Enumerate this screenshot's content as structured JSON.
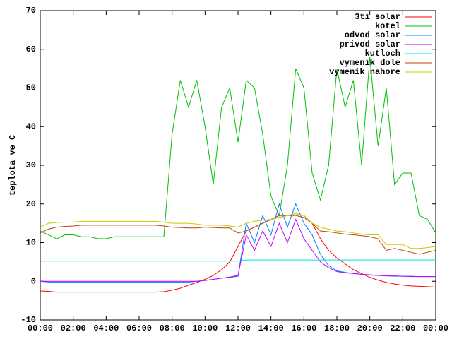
{
  "chart_data": {
    "type": "line",
    "ylabel": "teplota ve C",
    "x": [
      0,
      0.5,
      1,
      1.5,
      2,
      2.5,
      3,
      3.5,
      4,
      4.5,
      5,
      5.5,
      6,
      6.5,
      7,
      7.5,
      8,
      8.5,
      9,
      9.5,
      10,
      10.5,
      11,
      11.5,
      12,
      12.5,
      13,
      13.5,
      14,
      14.5,
      15,
      15.5,
      16,
      16.5,
      17,
      17.5,
      18,
      18.5,
      19,
      19.5,
      20,
      20.5,
      21,
      21.5,
      22,
      22.5,
      23,
      23.5,
      24
    ],
    "xlim": [
      0,
      24
    ],
    "xticks": [
      {
        "value": 0,
        "label": "00:00"
      },
      {
        "value": 2,
        "label": "02:00"
      },
      {
        "value": 4,
        "label": "04:00"
      },
      {
        "value": 6,
        "label": "06:00"
      },
      {
        "value": 8,
        "label": "08:00"
      },
      {
        "value": 10,
        "label": "10:00"
      },
      {
        "value": 12,
        "label": "12:00"
      },
      {
        "value": 14,
        "label": "14:00"
      },
      {
        "value": 16,
        "label": "16:00"
      },
      {
        "value": 18,
        "label": "18:00"
      },
      {
        "value": 20,
        "label": "20:00"
      },
      {
        "value": 22,
        "label": "22:00"
      },
      {
        "value": 24,
        "label": "00:00"
      }
    ],
    "ylim": [
      -10,
      70
    ],
    "yticks": [
      -10,
      0,
      10,
      20,
      30,
      40,
      50,
      60,
      70
    ],
    "legend": "top right",
    "series": [
      {
        "name": "3ti solar",
        "color": "#ff0000",
        "values": [
          -2.5,
          -2.6,
          -2.8,
          -2.8,
          -2.8,
          -2.8,
          -2.8,
          -2.8,
          -2.8,
          -2.8,
          -2.8,
          -2.8,
          -2.8,
          -2.8,
          -2.8,
          -2.7,
          -2.3,
          -1.8,
          -1,
          -0.3,
          0.5,
          1.5,
          3,
          5,
          9,
          13,
          14,
          15,
          16,
          17,
          17,
          17.5,
          17,
          15,
          11,
          8,
          6,
          4.5,
          3,
          2,
          1,
          0.3,
          -0.3,
          -0.7,
          -1,
          -1.2,
          -1.3,
          -1.4,
          -1.5
        ]
      },
      {
        "name": "kotel",
        "color": "#00c000",
        "values": [
          13,
          12,
          11,
          12,
          12,
          11.5,
          11.5,
          11,
          11,
          11.5,
          11.5,
          11.5,
          11.5,
          11.5,
          11.5,
          11.5,
          38,
          52,
          45,
          52,
          40,
          25,
          45,
          50,
          36,
          52,
          50,
          38,
          22,
          17,
          30,
          55,
          50,
          28,
          21,
          30,
          55,
          45,
          52,
          30,
          58,
          35,
          50,
          25,
          28,
          28,
          17,
          16,
          12.5
        ]
      },
      {
        "name": "odvod solar",
        "color": "#0080ff",
        "values": [
          0,
          -0.2,
          -0.2,
          -0.2,
          -0.2,
          -0.2,
          -0.2,
          -0.2,
          -0.2,
          -0.2,
          -0.2,
          -0.2,
          -0.2,
          -0.2,
          -0.2,
          -0.2,
          -0.2,
          -0.2,
          -0.2,
          0,
          0.2,
          0.5,
          0.8,
          1,
          1.3,
          15,
          10,
          17,
          12,
          20,
          14,
          20,
          15,
          12,
          7,
          4,
          2.7,
          2.3,
          2,
          1.8,
          1.6,
          1.5,
          1.4,
          1.3,
          1.3,
          1.2,
          1.2,
          1.2,
          1.2
        ]
      },
      {
        "name": "privod solar",
        "color": "#c000ff",
        "values": [
          0,
          0,
          0,
          0,
          0,
          0,
          0,
          0,
          0,
          0,
          0,
          0,
          0,
          0,
          0,
          0,
          0,
          0,
          0,
          0,
          0.2,
          0.5,
          0.8,
          1.1,
          1.5,
          12,
          8,
          13,
          9,
          15,
          10,
          16,
          11,
          8,
          5,
          3.5,
          2.5,
          2.2,
          2,
          1.8,
          1.7,
          1.5,
          1.4,
          1.4,
          1.3,
          1.3,
          1.2,
          1.2,
          1.2
        ]
      },
      {
        "name": "kutloch",
        "color": "#00e0e0",
        "values": [
          5.2,
          5.2,
          5.2,
          5.2,
          5.2,
          5.2,
          5.2,
          5.2,
          5.2,
          5.2,
          5.2,
          5.2,
          5.2,
          5.2,
          5.2,
          5.2,
          5.2,
          5.2,
          5.2,
          5.2,
          5.2,
          5.2,
          5.2,
          5.2,
          5.2,
          5.5,
          5.5,
          5.5,
          5.5,
          5.5,
          5.5,
          5.5,
          5.5,
          5.5,
          5.5,
          5.5,
          5.5,
          5.5,
          5.5,
          5.5,
          5.5,
          5.5,
          5.5,
          5.5,
          5.5,
          5.5,
          5.5,
          5.5,
          5.5
        ]
      },
      {
        "name": "vymenik dole",
        "color": "#c04000",
        "values": [
          12.5,
          13.5,
          14,
          14.2,
          14.3,
          14.5,
          14.5,
          14.5,
          14.5,
          14.5,
          14.5,
          14.5,
          14.5,
          14.5,
          14.5,
          14.3,
          14,
          13.9,
          13.8,
          13.8,
          14,
          13.9,
          13.8,
          13.8,
          12.5,
          13,
          14,
          15,
          16,
          16.5,
          17,
          17,
          16.5,
          15,
          13,
          12.8,
          12.5,
          12.2,
          12,
          11.8,
          11.5,
          11,
          8,
          8.5,
          8,
          7.5,
          7,
          7.5,
          8
        ]
      },
      {
        "name": "vymenik nahore",
        "color": "#c8c800",
        "values": [
          14,
          15,
          15.2,
          15.3,
          15.3,
          15.5,
          15.5,
          15.5,
          15.5,
          15.5,
          15.5,
          15.5,
          15.5,
          15.5,
          15.5,
          15.3,
          15,
          15,
          15,
          14.8,
          14.5,
          14.5,
          14.5,
          14.3,
          14,
          15,
          15.5,
          15.8,
          16,
          16.5,
          17,
          17.5,
          17,
          15,
          14,
          13.5,
          13,
          12.8,
          12.5,
          12.2,
          12,
          12,
          9.5,
          9.5,
          9.5,
          8.5,
          8.5,
          8.7,
          9
        ]
      }
    ]
  }
}
